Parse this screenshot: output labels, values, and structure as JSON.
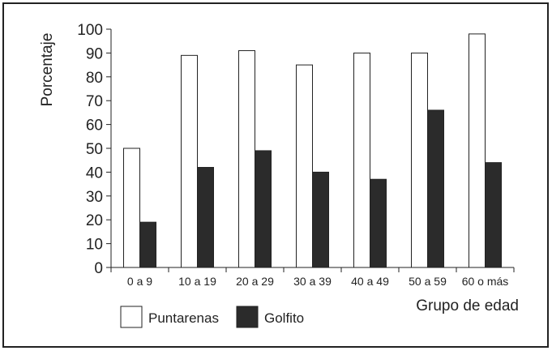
{
  "chart_data": {
    "type": "bar",
    "title": "",
    "xlabel": "Grupo de edad",
    "ylabel": "Porcentaje",
    "ylim": [
      0,
      100
    ],
    "yticks": [
      0,
      10,
      20,
      30,
      40,
      50,
      60,
      70,
      80,
      90,
      100
    ],
    "categories": [
      "0 a 9",
      "10 a 19",
      "20 a 29",
      "30 a 39",
      "40 a 49",
      "50 a 59",
      "60 o más"
    ],
    "series": [
      {
        "name": "Puntarenas",
        "color": "#ffffff",
        "values": [
          50,
          89,
          91,
          85,
          90,
          90,
          98
        ]
      },
      {
        "name": "Golfito",
        "color": "#2b2b2b",
        "values": [
          19,
          42,
          49,
          40,
          37,
          66,
          44
        ]
      }
    ],
    "grid": false,
    "legend": "bottom-left"
  }
}
